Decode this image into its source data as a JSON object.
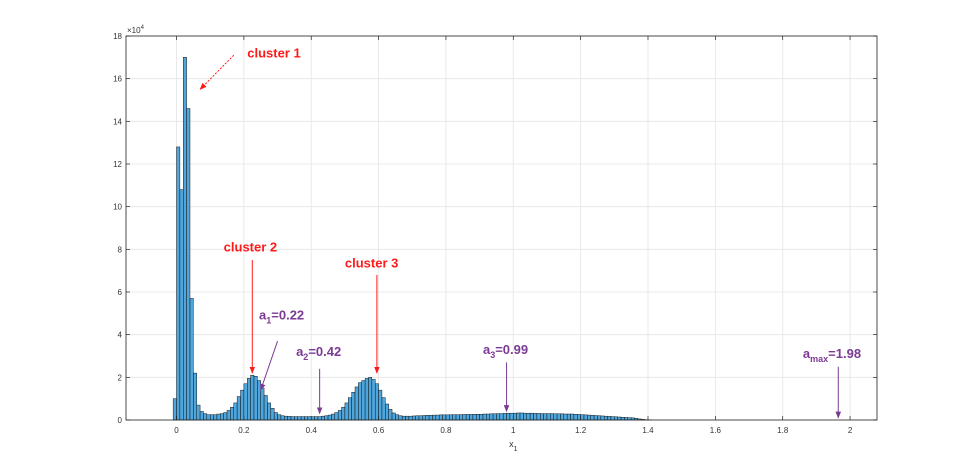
{
  "chart_data": {
    "type": "bar",
    "xlabel_main": "x",
    "xlabel_sub": "1",
    "ylabel": "",
    "y_exponent_base": "×10",
    "y_exponent_power": "4",
    "xlim": [
      -0.15,
      2.08
    ],
    "ylim": [
      0,
      180000
    ],
    "xticks": [
      0,
      0.2,
      0.4,
      0.6,
      0.8,
      1,
      1.2,
      1.4,
      1.6,
      1.8,
      2
    ],
    "xtick_labels": [
      "0",
      "0.2",
      "0.4",
      "0.6",
      "0.8",
      "1",
      "1.2",
      "1.4",
      "1.6",
      "1.8",
      "2"
    ],
    "yticks": [
      0,
      20000,
      40000,
      60000,
      80000,
      100000,
      120000,
      140000,
      160000,
      180000
    ],
    "ytick_labels": [
      "0",
      "2",
      "4",
      "6",
      "8",
      "10",
      "12",
      "14",
      "16",
      "18"
    ],
    "grid": true,
    "bar_color": "#4fa6dc",
    "bar_edge": "#0a0a0a",
    "bin_width": 0.01,
    "bins": [
      [
        -0.01,
        10000
      ],
      [
        0.0,
        128000
      ],
      [
        0.01,
        108000
      ],
      [
        0.02,
        170000
      ],
      [
        0.03,
        146000
      ],
      [
        0.04,
        57000
      ],
      [
        0.05,
        22000
      ],
      [
        0.06,
        7000
      ],
      [
        0.07,
        4000
      ],
      [
        0.08,
        3000
      ],
      [
        0.09,
        2500
      ],
      [
        0.1,
        2500
      ],
      [
        0.11,
        2500
      ],
      [
        0.12,
        2800
      ],
      [
        0.13,
        3000
      ],
      [
        0.14,
        3500
      ],
      [
        0.15,
        4500
      ],
      [
        0.16,
        6000
      ],
      [
        0.17,
        8000
      ],
      [
        0.18,
        11000
      ],
      [
        0.19,
        14000
      ],
      [
        0.2,
        17000
      ],
      [
        0.21,
        19500
      ],
      [
        0.22,
        21000
      ],
      [
        0.23,
        20500
      ],
      [
        0.24,
        18500
      ],
      [
        0.25,
        15000
      ],
      [
        0.26,
        11500
      ],
      [
        0.27,
        8000
      ],
      [
        0.28,
        5500
      ],
      [
        0.29,
        3500
      ],
      [
        0.3,
        2500
      ],
      [
        0.31,
        2000
      ],
      [
        0.32,
        1800
      ],
      [
        0.33,
        1700
      ],
      [
        0.34,
        1600
      ],
      [
        0.35,
        1600
      ],
      [
        0.36,
        1600
      ],
      [
        0.37,
        1600
      ],
      [
        0.38,
        1600
      ],
      [
        0.39,
        1600
      ],
      [
        0.4,
        1600
      ],
      [
        0.41,
        1600
      ],
      [
        0.42,
        1600
      ],
      [
        0.43,
        1800
      ],
      [
        0.44,
        2000
      ],
      [
        0.45,
        2300
      ],
      [
        0.46,
        2800
      ],
      [
        0.47,
        3500
      ],
      [
        0.48,
        4500
      ],
      [
        0.49,
        6000
      ],
      [
        0.5,
        8000
      ],
      [
        0.51,
        10500
      ],
      [
        0.52,
        13000
      ],
      [
        0.53,
        15500
      ],
      [
        0.54,
        17500
      ],
      [
        0.55,
        18500
      ],
      [
        0.56,
        19500
      ],
      [
        0.57,
        20000
      ],
      [
        0.58,
        19000
      ],
      [
        0.59,
        17000
      ],
      [
        0.6,
        14000
      ],
      [
        0.61,
        10500
      ],
      [
        0.62,
        7500
      ],
      [
        0.63,
        5000
      ],
      [
        0.64,
        3300
      ],
      [
        0.65,
        2500
      ],
      [
        0.66,
        2000
      ],
      [
        0.67,
        1800
      ],
      [
        0.68,
        1800
      ],
      [
        0.69,
        1800
      ],
      [
        0.7,
        1900
      ],
      [
        0.71,
        2000
      ],
      [
        0.72,
        2000
      ],
      [
        0.73,
        2100
      ],
      [
        0.74,
        2200
      ],
      [
        0.75,
        2200
      ],
      [
        0.76,
        2300
      ],
      [
        0.77,
        2300
      ],
      [
        0.78,
        2400
      ],
      [
        0.79,
        2400
      ],
      [
        0.8,
        2400
      ],
      [
        0.81,
        2500
      ],
      [
        0.82,
        2500
      ],
      [
        0.83,
        2500
      ],
      [
        0.84,
        2500
      ],
      [
        0.85,
        2600
      ],
      [
        0.86,
        2600
      ],
      [
        0.87,
        2600
      ],
      [
        0.88,
        2700
      ],
      [
        0.89,
        2700
      ],
      [
        0.9,
        2700
      ],
      [
        0.91,
        2800
      ],
      [
        0.92,
        2800
      ],
      [
        0.93,
        2900
      ],
      [
        0.94,
        2900
      ],
      [
        0.95,
        3000
      ],
      [
        0.96,
        3000
      ],
      [
        0.97,
        3100
      ],
      [
        0.98,
        3200
      ],
      [
        0.99,
        3200
      ],
      [
        1.0,
        3200
      ],
      [
        1.01,
        3300
      ],
      [
        1.02,
        3300
      ],
      [
        1.03,
        3200
      ],
      [
        1.04,
        3200
      ],
      [
        1.05,
        3200
      ],
      [
        1.06,
        3100
      ],
      [
        1.07,
        3100
      ],
      [
        1.08,
        3000
      ],
      [
        1.09,
        3000
      ],
      [
        1.1,
        3000
      ],
      [
        1.11,
        3000
      ],
      [
        1.12,
        2900
      ],
      [
        1.13,
        2900
      ],
      [
        1.14,
        2900
      ],
      [
        1.15,
        2800
      ],
      [
        1.16,
        2800
      ],
      [
        1.17,
        2800
      ],
      [
        1.18,
        2700
      ],
      [
        1.19,
        2600
      ],
      [
        1.2,
        2500
      ],
      [
        1.21,
        2400
      ],
      [
        1.22,
        2300
      ],
      [
        1.23,
        2200
      ],
      [
        1.24,
        2100
      ],
      [
        1.25,
        2000
      ],
      [
        1.26,
        1900
      ],
      [
        1.27,
        1800
      ],
      [
        1.28,
        1700
      ],
      [
        1.29,
        1600
      ],
      [
        1.3,
        1500
      ],
      [
        1.31,
        1400
      ],
      [
        1.32,
        1300
      ],
      [
        1.33,
        1200
      ],
      [
        1.34,
        1100
      ],
      [
        1.35,
        1000
      ],
      [
        1.36,
        800
      ],
      [
        1.37,
        500
      ],
      [
        1.38,
        300
      ],
      [
        1.39,
        150
      ],
      [
        1.4,
        80
      ]
    ],
    "annotations": [
      {
        "id": "cluster1",
        "text": "cluster 1",
        "sub": "",
        "rest": "",
        "color": "#ff1a1a",
        "arrow_to": [
          0.07,
          155000
        ],
        "arrow_from": [
          0.17,
          171000
        ],
        "label_at": [
          0.21,
          170000
        ],
        "dashed": true
      },
      {
        "id": "cluster2",
        "text": "cluster 2",
        "sub": "",
        "rest": "",
        "color": "#ff1a1a",
        "arrow_to": [
          0.225,
          22000
        ],
        "arrow_from": [
          0.225,
          75000
        ],
        "label_at": [
          0.14,
          79000
        ],
        "dashed": false
      },
      {
        "id": "cluster3",
        "text": "cluster 3",
        "sub": "",
        "rest": "",
        "color": "#ff1a1a",
        "arrow_to": [
          0.595,
          22000
        ],
        "arrow_from": [
          0.595,
          68000
        ],
        "label_at": [
          0.5,
          71500
        ],
        "dashed": false
      },
      {
        "id": "a1",
        "text": "a",
        "sub": "1",
        "rest": "=0.22",
        "color": "#7b3a93",
        "arrow_to": [
          0.25,
          14000
        ],
        "arrow_from": [
          0.3,
          37000
        ],
        "label_at": [
          0.245,
          47000
        ],
        "dashed": false
      },
      {
        "id": "a2",
        "text": "a",
        "sub": "2",
        "rest": "=0.42",
        "color": "#7b3a93",
        "arrow_to": [
          0.425,
          3000
        ],
        "arrow_from": [
          0.425,
          24000
        ],
        "label_at": [
          0.355,
          30000
        ],
        "dashed": false
      },
      {
        "id": "a3",
        "text": "a",
        "sub": "3",
        "rest": "=0.99",
        "color": "#7b3a93",
        "arrow_to": [
          0.98,
          4000
        ],
        "arrow_from": [
          0.98,
          27000
        ],
        "label_at": [
          0.91,
          31000
        ],
        "dashed": false
      },
      {
        "id": "amax",
        "text": "a",
        "sub": "max",
        "rest": "=1.98",
        "color": "#7b3a93",
        "arrow_to": [
          1.965,
          1000
        ],
        "arrow_from": [
          1.965,
          25000
        ],
        "label_at": [
          1.86,
          29000
        ],
        "dashed": false
      }
    ]
  }
}
